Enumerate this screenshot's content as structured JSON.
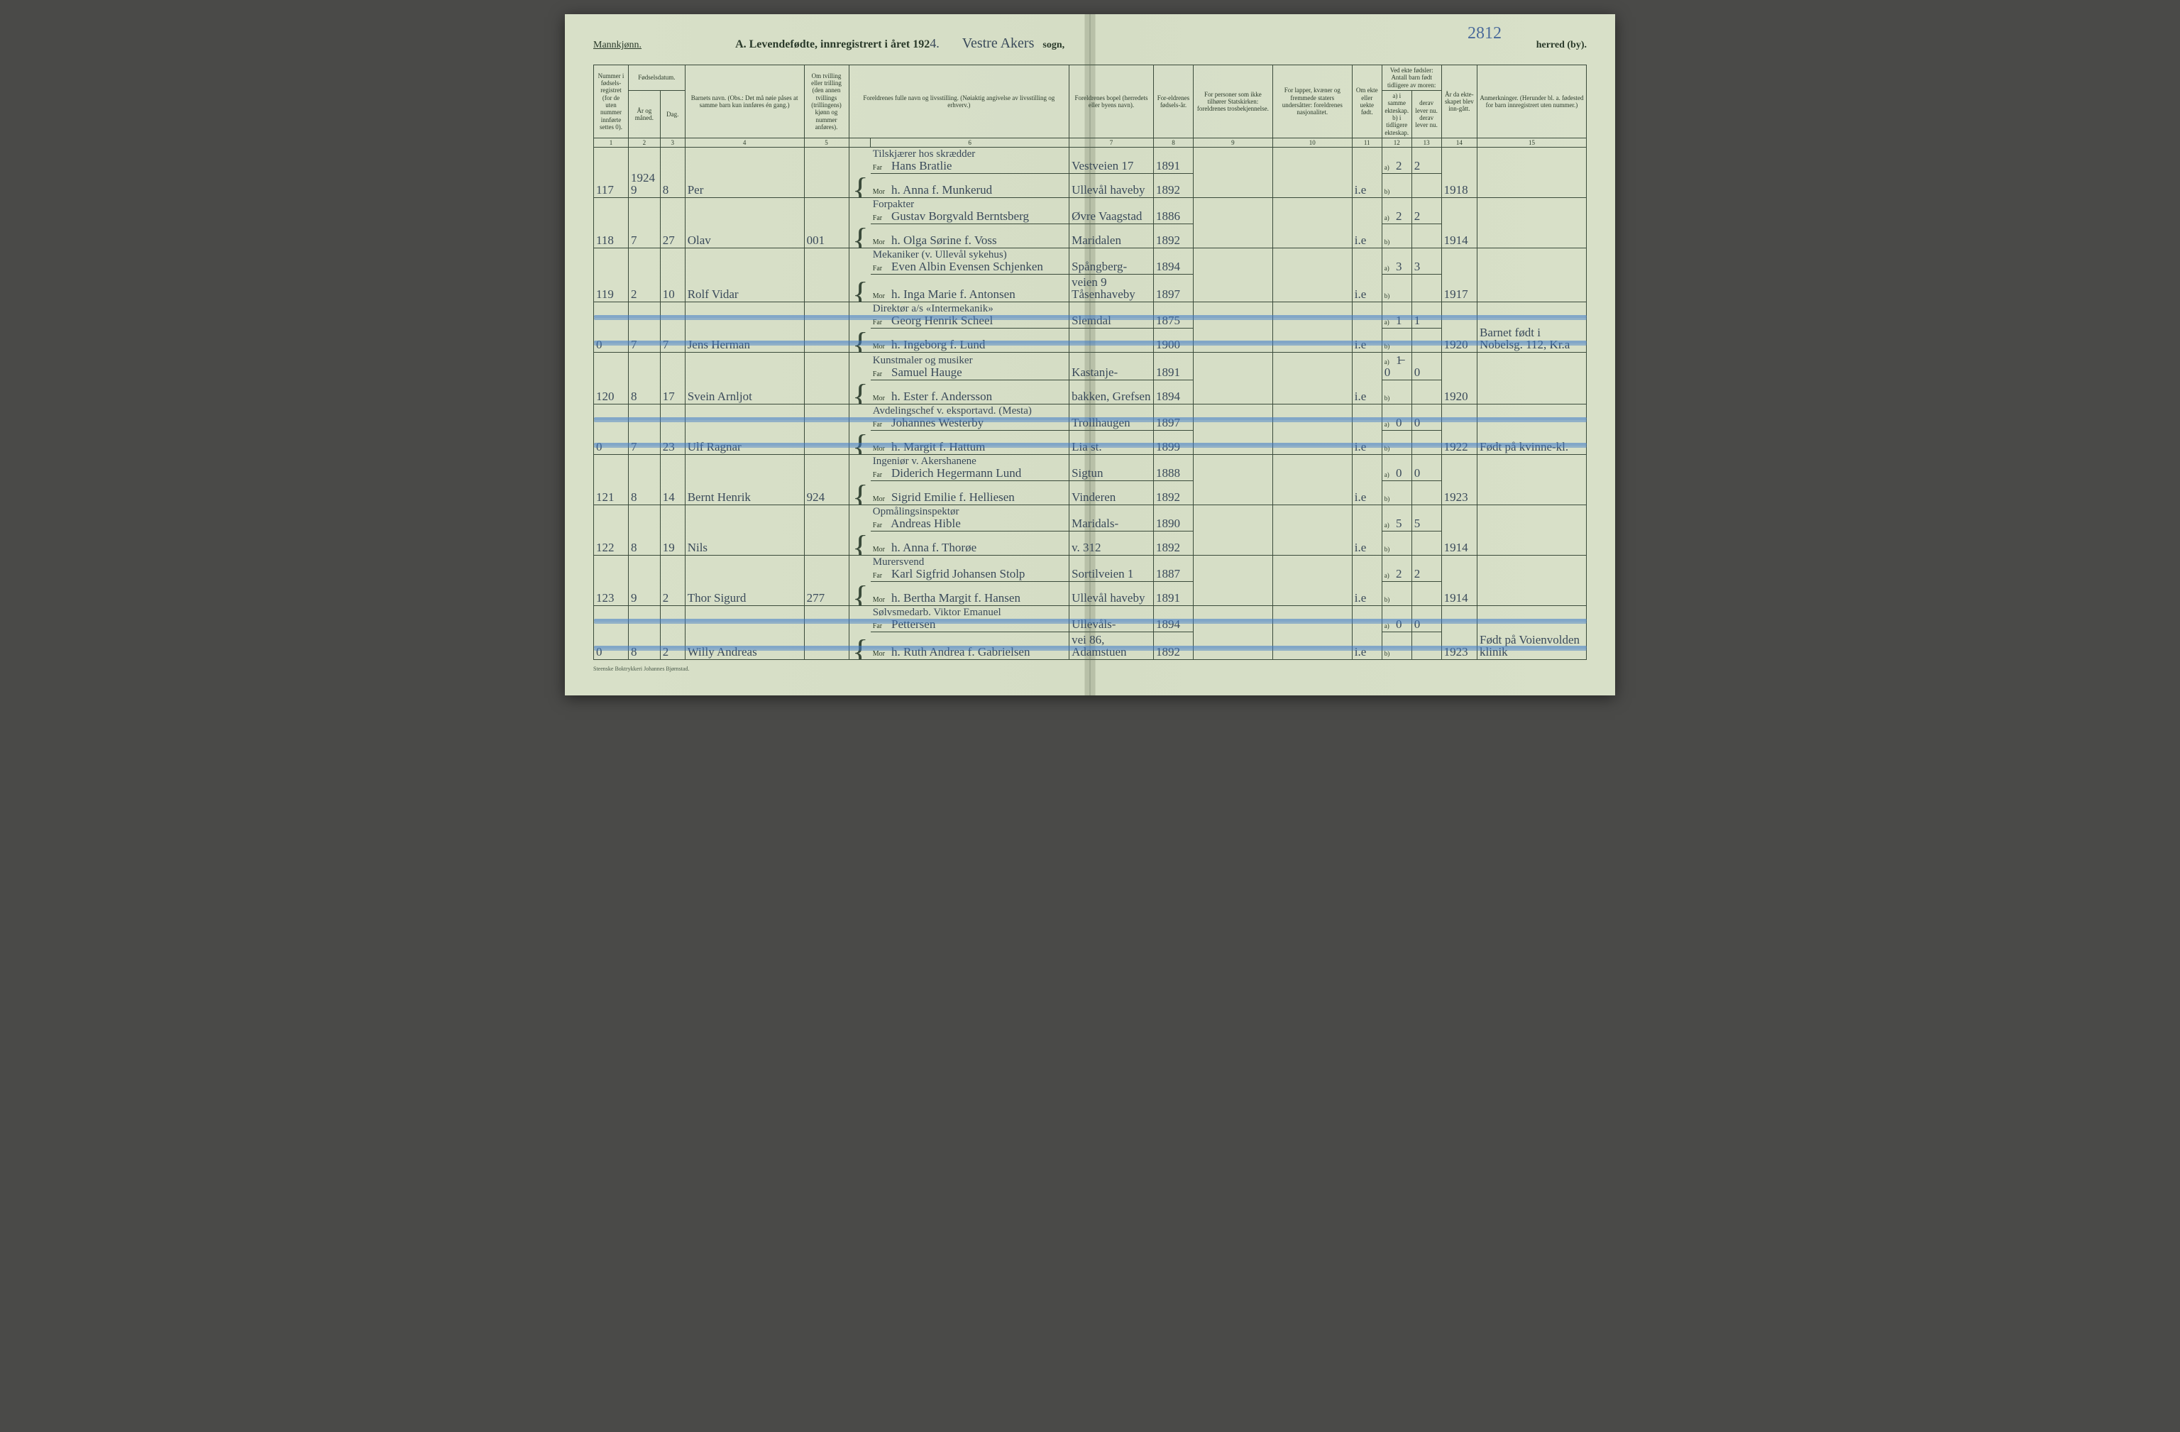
{
  "colors": {
    "page_bg": "#d8e0c8",
    "ink_printed": "#2a3a2a",
    "ink_handwritten": "#3a4a5a",
    "rule_line": "#3a4a3a",
    "strike_blue": "#5a90d8"
  },
  "typography": {
    "printed_family": "Times New Roman",
    "hand_family": "Brush Script MT",
    "header_fontsize_pt": 9,
    "body_hand_fontsize_pt": 17
  },
  "header": {
    "gender": "Mannkjønn.",
    "title_prefix": "A.  Levendefødte, innregistrert i året 192",
    "year_suffix": "4.",
    "parish_hand": "Vestre Akers",
    "sogn_label": "sogn,",
    "herred_label": "herred (by).",
    "page_number": "2812"
  },
  "columns": {
    "c1": "Nummer i fødsels-registret (for de uten nummer innførte settes 0).",
    "c2_group": "Fødselsdatum.",
    "c2": "År og måned.",
    "c3": "Dag.",
    "c4": "Barnets navn.\n(Obs.: Det må nøie påses at samme barn kun innføres én gang.)",
    "c5": "Om tvilling eller trilling (den annen tvillings (trillingens) kjønn og nummer anføres).",
    "c6": "Foreldrenes fulle navn og livsstilling.\n(Nøiaktig angivelse av livsstilling og erhverv.)",
    "c7": "Foreldrenes bopel (herredets eller byens navn).",
    "c8": "For-eldrenes fødsels-år.",
    "c9": "For personer som ikke tilhører Statskirken: foreldrenes trosbekjennelse.",
    "c10": "For lapper, kvæner og fremmede staters undersåtter: foreldrenes nasjonalitet.",
    "c11": "Om ekte eller uekte født.",
    "c12_group": "Ved ekte fødsler: Antall barn født tidligere av moren:",
    "c12": "a) i samme ekteskap.\nb) i tidligere ekteskap.",
    "c13": "derav lever nu.\nderav lever nu.",
    "c14": "År da ekte-skapet blev inn-gått.",
    "c15": "Anmerkninger.\n(Herunder bl. a. fødested for barn innregistrert uten nummer.)"
  },
  "column_numbers": [
    "1",
    "2",
    "3",
    "4",
    "5",
    "",
    "6",
    "7",
    "8",
    "9",
    "10",
    "11",
    "12",
    "13",
    "14",
    "15"
  ],
  "column_widths_pct": [
    3.5,
    3.2,
    2.5,
    12,
    4.5,
    2.2,
    20,
    8.5,
    4,
    8,
    8,
    3,
    3,
    3,
    3.6,
    11
  ],
  "far_label": "Far",
  "mor_label": "Mor",
  "a_label": "a)",
  "b_label": "b)",
  "rows": [
    {
      "num": "117",
      "yr_mo_top": "1924",
      "yr_mo": "9",
      "day": "8",
      "name": "Per",
      "strike": false,
      "far_occ": "Tilskjærer hos skrædder",
      "far": "Hans Bratlie",
      "far_res": "Vestveien 17",
      "far_born": "1891",
      "mor": "h. Anna f. Munkerud",
      "mor_res": "Ullevål haveby",
      "mor_born": "1892",
      "ekte": "i.e",
      "a": "2",
      "a_lev": "2",
      "b": "",
      "b_lev": "",
      "marr": "1918",
      "note": ""
    },
    {
      "num": "118",
      "yr_mo": "7",
      "day": "27",
      "name": "Olav",
      "strike": false,
      "col5": "001",
      "far_occ": "Forpakter",
      "far": "Gustav Borgvald Berntsberg",
      "far_res": "Øvre Vaagstad",
      "far_born": "1886",
      "mor": "h. Olga Sørine f. Voss",
      "mor_res": "Maridalen",
      "mor_born": "1892",
      "ekte": "i.e",
      "a": "2",
      "a_lev": "2",
      "b": "",
      "b_lev": "",
      "marr": "1914",
      "note": ""
    },
    {
      "num": "119",
      "yr_mo": "2",
      "day": "10",
      "name": "Rolf Vidar",
      "strike": false,
      "far_occ": "Mekaniker (v. Ullevål sykehus)",
      "far": "Even Albin Evensen Schjenken",
      "far_res": "Spångberg-",
      "far_born": "1894",
      "mor": "h. Inga Marie f. Antonsen",
      "mor_res": "veien 9 Tåsenhaveby",
      "mor_born": "1897",
      "ekte": "i.e",
      "a": "3",
      "a_lev": "3",
      "b": "",
      "b_lev": "",
      "marr": "1917",
      "note": ""
    },
    {
      "num": "0",
      "yr_mo": "7",
      "day": "7",
      "name": "Jens Herman",
      "strike": true,
      "far_occ": "Direktør a/s «Intermekanik»",
      "far": "Georg Henrik Scheel",
      "far_res": "Slemdal",
      "far_born": "1875",
      "mor": "h. Ingeborg f. Lund",
      "mor_res": "",
      "mor_born": "1900",
      "ekte": "i.e",
      "a": "1",
      "a_lev": "1",
      "b": "",
      "b_lev": "",
      "marr": "1920",
      "note": "Barnet født i Nobelsg. 112, Kr.a"
    },
    {
      "num": "120",
      "yr_mo": "8",
      "day": "17",
      "name": "Svein Arnljot",
      "strike": false,
      "far_occ": "Kunstmaler og musiker",
      "far": "Samuel Hauge",
      "far_res": "Kastanje-",
      "far_born": "1891",
      "mor": "h. Ester f. Andersson",
      "mor_res": "bakken, Grefsen",
      "mor_born": "1894",
      "ekte": "i.e",
      "a": "1̶ 0",
      "a_lev": "0",
      "b": "",
      "b_lev": "",
      "marr": "1920",
      "note": ""
    },
    {
      "num": "0",
      "yr_mo": "7",
      "day": "23",
      "name": "Ulf Ragnar",
      "strike": true,
      "far_occ": "Avdelingschef v. eksportavd. (Mesta)",
      "far": "Johannes Westerby",
      "far_res": "Trollhaugen",
      "far_born": "1897",
      "mor": "h. Margit f. Hattum",
      "mor_res": "Lia st.",
      "mor_born": "1899",
      "ekte": "i.e",
      "a": "0",
      "a_lev": "0",
      "b": "",
      "b_lev": "",
      "marr": "1922",
      "note": "Født på kvinne-kl."
    },
    {
      "num": "121",
      "yr_mo": "8",
      "day": "14",
      "name": "Bernt Henrik",
      "strike": false,
      "col5": "924",
      "far_occ": "Ingeniør v. Akershanene",
      "far": "Diderich Hegermann Lund",
      "far_res": "Sigtun",
      "far_born": "1888",
      "mor": "Sigrid Emilie f. Helliesen",
      "mor_res": "Vinderen",
      "mor_born": "1892",
      "ekte": "i.e",
      "a": "0",
      "a_lev": "0",
      "b": "",
      "b_lev": "",
      "marr": "1923",
      "note": ""
    },
    {
      "num": "122",
      "yr_mo": "8",
      "day": "19",
      "name": "Nils",
      "strike": false,
      "far_occ": "Opmålingsinspektør",
      "far": "Andreas Hible",
      "far_res": "Maridals-",
      "far_born": "1890",
      "mor": "h. Anna f. Thorøe",
      "mor_res": "v. 312",
      "mor_born": "1892",
      "ekte": "i.e",
      "a": "5",
      "a_lev": "5",
      "b": "",
      "b_lev": "",
      "marr": "1914",
      "note": ""
    },
    {
      "num": "123",
      "yr_mo": "9",
      "day": "2",
      "name": "Thor Sigurd",
      "strike": false,
      "col5": "277",
      "far_occ": "Murersvend",
      "far": "Karl Sigfrid Johansen Stolp",
      "far_res": "Sortilveien 1",
      "far_born": "1887",
      "mor": "h. Bertha Margit f. Hansen",
      "mor_res": "Ullevål haveby",
      "mor_born": "1891",
      "ekte": "i.e",
      "a": "2",
      "a_lev": "2",
      "b": "",
      "b_lev": "",
      "marr": "1914",
      "note": ""
    },
    {
      "num": "0",
      "yr_mo": "8",
      "day": "2",
      "name": "Willy Andreas",
      "strike": true,
      "far_occ": "Sølvsmedarb. Viktor Emanuel",
      "far": "Pettersen",
      "far_res": "Ullevåls-",
      "far_born": "1894",
      "mor": "h. Ruth Andrea f. Gabrielsen",
      "mor_res": "vei 86, Adamstuen",
      "mor_born": "1892",
      "ekte": "i.e",
      "a": "0",
      "a_lev": "0",
      "b": "",
      "b_lev": "",
      "marr": "1923",
      "note": "Født på Voienvolden klinik"
    }
  ],
  "footer": "Steenske Boktrykkeri Johannes Bjørnstad."
}
